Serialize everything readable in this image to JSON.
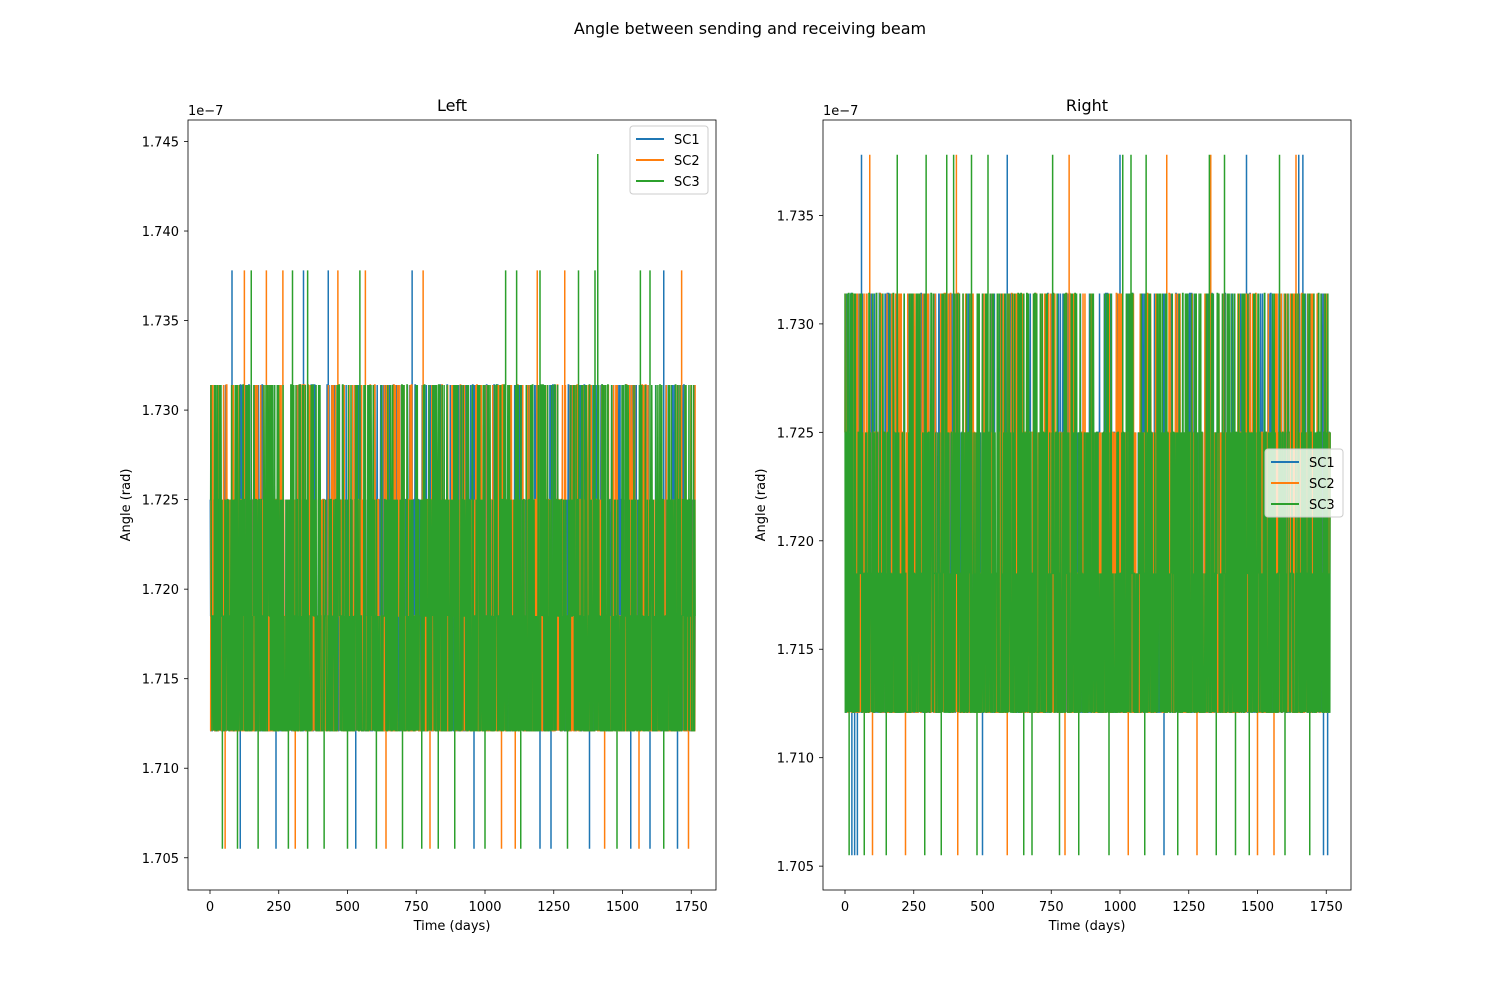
{
  "figure": {
    "suptitle": "Angle between sending and receiving beam"
  },
  "colors": {
    "SC1": "#1f77b4",
    "SC2": "#ff7f0e",
    "SC3": "#2ca02c"
  },
  "chart_data": [
    {
      "type": "line",
      "title": "Left",
      "xlabel": "Time (days)",
      "ylabel": "Angle (rad)",
      "y_offset_label": "1e−7",
      "y_scale_factor": 1e-07,
      "xlim": [
        -80,
        1840
      ],
      "ylim": [
        1.7032,
        1.7462
      ],
      "x_ticks": [
        0,
        250,
        500,
        750,
        1000,
        1250,
        1500,
        1750
      ],
      "y_ticks": [
        "1.705",
        "1.710",
        "1.715",
        "1.720",
        "1.725",
        "1.730",
        "1.735",
        "1.740",
        "1.745"
      ],
      "legend_position": "upper right",
      "x_range": [
        0,
        1764
      ],
      "series": [
        {
          "name": "SC1",
          "levels": [
            1.7121,
            1.7185,
            1.725,
            1.7314
          ],
          "spikes_high": [
            {
              "x": 80,
              "y": 1.7378
            },
            {
              "x": 340,
              "y": 1.7378
            },
            {
              "x": 430,
              "y": 1.7378
            },
            {
              "x": 735,
              "y": 1.7378
            },
            {
              "x": 1650,
              "y": 1.7378
            }
          ],
          "spikes_low": [
            {
              "x": 110,
              "y": 1.7055
            },
            {
              "x": 240,
              "y": 1.7055
            },
            {
              "x": 530,
              "y": 1.7055
            },
            {
              "x": 960,
              "y": 1.7055
            },
            {
              "x": 1200,
              "y": 1.7055
            },
            {
              "x": 1240,
              "y": 1.7055
            },
            {
              "x": 1380,
              "y": 1.7055
            },
            {
              "x": 1530,
              "y": 1.7055
            },
            {
              "x": 1600,
              "y": 1.7055
            },
            {
              "x": 1700,
              "y": 1.7055
            }
          ]
        },
        {
          "name": "SC2",
          "levels": [
            1.7121,
            1.7185,
            1.725,
            1.7314
          ],
          "spikes_high": [
            {
              "x": 125,
              "y": 1.7378
            },
            {
              "x": 205,
              "y": 1.7378
            },
            {
              "x": 265,
              "y": 1.7378
            },
            {
              "x": 465,
              "y": 1.7378
            },
            {
              "x": 565,
              "y": 1.7378
            },
            {
              "x": 775,
              "y": 1.7378
            },
            {
              "x": 1190,
              "y": 1.7378
            },
            {
              "x": 1290,
              "y": 1.7378
            },
            {
              "x": 1715,
              "y": 1.7378
            }
          ],
          "spikes_low": [
            {
              "x": 55,
              "y": 1.7055
            },
            {
              "x": 310,
              "y": 1.7055
            },
            {
              "x": 640,
              "y": 1.7055
            },
            {
              "x": 800,
              "y": 1.7055
            },
            {
              "x": 1060,
              "y": 1.7055
            },
            {
              "x": 1110,
              "y": 1.7055
            },
            {
              "x": 1435,
              "y": 1.7055
            },
            {
              "x": 1560,
              "y": 1.7055
            },
            {
              "x": 1740,
              "y": 1.7055
            }
          ]
        },
        {
          "name": "SC3",
          "levels": [
            1.7121,
            1.7185,
            1.725,
            1.7314
          ],
          "spikes_high": [
            {
              "x": 150,
              "y": 1.7378
            },
            {
              "x": 300,
              "y": 1.7378
            },
            {
              "x": 355,
              "y": 1.7378
            },
            {
              "x": 545,
              "y": 1.7378
            },
            {
              "x": 1075,
              "y": 1.7378
            },
            {
              "x": 1115,
              "y": 1.7378
            },
            {
              "x": 1200,
              "y": 1.7378
            },
            {
              "x": 1340,
              "y": 1.7378
            },
            {
              "x": 1400,
              "y": 1.7378
            },
            {
              "x": 1410,
              "y": 1.7443
            },
            {
              "x": 1565,
              "y": 1.7378
            },
            {
              "x": 1600,
              "y": 1.7378
            }
          ],
          "spikes_low": [
            {
              "x": 45,
              "y": 1.7055
            },
            {
              "x": 100,
              "y": 1.7055
            },
            {
              "x": 175,
              "y": 1.7055
            },
            {
              "x": 285,
              "y": 1.7055
            },
            {
              "x": 355,
              "y": 1.7055
            },
            {
              "x": 415,
              "y": 1.7055
            },
            {
              "x": 500,
              "y": 1.7055
            },
            {
              "x": 605,
              "y": 1.7055
            },
            {
              "x": 700,
              "y": 1.7055
            },
            {
              "x": 770,
              "y": 1.7055
            },
            {
              "x": 830,
              "y": 1.7055
            },
            {
              "x": 890,
              "y": 1.7055
            },
            {
              "x": 1000,
              "y": 1.7055
            },
            {
              "x": 1130,
              "y": 1.7055
            },
            {
              "x": 1300,
              "y": 1.7055
            },
            {
              "x": 1480,
              "y": 1.7055
            },
            {
              "x": 1650,
              "y": 1.7055
            }
          ]
        }
      ]
    },
    {
      "type": "line",
      "title": "Right",
      "xlabel": "Time (days)",
      "ylabel": "Angle (rad)",
      "y_offset_label": "1e−7",
      "y_scale_factor": 1e-07,
      "xlim": [
        -80,
        1840
      ],
      "ylim": [
        1.7039,
        1.7394
      ],
      "x_ticks": [
        0,
        250,
        500,
        750,
        1000,
        1250,
        1500,
        1750
      ],
      "y_ticks": [
        "1.705",
        "1.710",
        "1.715",
        "1.720",
        "1.725",
        "1.730",
        "1.735"
      ],
      "legend_position": "center right",
      "x_range": [
        0,
        1764
      ],
      "series": [
        {
          "name": "SC1",
          "levels": [
            1.7121,
            1.7185,
            1.725,
            1.7314
          ],
          "spikes_high": [
            {
              "x": 60,
              "y": 1.7378
            },
            {
              "x": 590,
              "y": 1.7378
            },
            {
              "x": 1000,
              "y": 1.7378
            },
            {
              "x": 1460,
              "y": 1.7378
            },
            {
              "x": 1650,
              "y": 1.7378
            },
            {
              "x": 1665,
              "y": 1.7378
            }
          ],
          "spikes_low": [
            {
              "x": 25,
              "y": 1.7055
            },
            {
              "x": 35,
              "y": 1.7055
            },
            {
              "x": 45,
              "y": 1.7055
            },
            {
              "x": 500,
              "y": 1.7055
            },
            {
              "x": 1160,
              "y": 1.7055
            },
            {
              "x": 1740,
              "y": 1.7055
            },
            {
              "x": 1755,
              "y": 1.7055
            }
          ]
        },
        {
          "name": "SC2",
          "levels": [
            1.7121,
            1.7185,
            1.725,
            1.7314
          ],
          "spikes_high": [
            {
              "x": 90,
              "y": 1.7378
            },
            {
              "x": 405,
              "y": 1.7378
            },
            {
              "x": 815,
              "y": 1.7378
            },
            {
              "x": 1170,
              "y": 1.7378
            },
            {
              "x": 1330,
              "y": 1.7378
            },
            {
              "x": 1640,
              "y": 1.7378
            }
          ],
          "spikes_low": [
            {
              "x": 100,
              "y": 1.7055
            },
            {
              "x": 220,
              "y": 1.7055
            },
            {
              "x": 410,
              "y": 1.7055
            },
            {
              "x": 590,
              "y": 1.7055
            },
            {
              "x": 800,
              "y": 1.7055
            },
            {
              "x": 1030,
              "y": 1.7055
            },
            {
              "x": 1280,
              "y": 1.7055
            },
            {
              "x": 1500,
              "y": 1.7055
            },
            {
              "x": 1560,
              "y": 1.7055
            }
          ]
        },
        {
          "name": "SC3",
          "levels": [
            1.7121,
            1.7185,
            1.725,
            1.7314
          ],
          "spikes_high": [
            {
              "x": 190,
              "y": 1.7378
            },
            {
              "x": 295,
              "y": 1.7378
            },
            {
              "x": 370,
              "y": 1.7378
            },
            {
              "x": 395,
              "y": 1.7378
            },
            {
              "x": 460,
              "y": 1.7378
            },
            {
              "x": 520,
              "y": 1.7378
            },
            {
              "x": 755,
              "y": 1.7378
            },
            {
              "x": 1010,
              "y": 1.7378
            },
            {
              "x": 1040,
              "y": 1.7378
            },
            {
              "x": 1095,
              "y": 1.7378
            },
            {
              "x": 1325,
              "y": 1.7378
            },
            {
              "x": 1380,
              "y": 1.7378
            },
            {
              "x": 1580,
              "y": 1.7378
            }
          ],
          "spikes_low": [
            {
              "x": 15,
              "y": 1.7055
            },
            {
              "x": 70,
              "y": 1.7055
            },
            {
              "x": 150,
              "y": 1.7055
            },
            {
              "x": 290,
              "y": 1.7055
            },
            {
              "x": 350,
              "y": 1.7055
            },
            {
              "x": 480,
              "y": 1.7055
            },
            {
              "x": 650,
              "y": 1.7055
            },
            {
              "x": 680,
              "y": 1.7055
            },
            {
              "x": 780,
              "y": 1.7055
            },
            {
              "x": 850,
              "y": 1.7055
            },
            {
              "x": 960,
              "y": 1.7055
            },
            {
              "x": 1090,
              "y": 1.7055
            },
            {
              "x": 1210,
              "y": 1.7055
            },
            {
              "x": 1350,
              "y": 1.7055
            },
            {
              "x": 1420,
              "y": 1.7055
            },
            {
              "x": 1470,
              "y": 1.7055
            },
            {
              "x": 1600,
              "y": 1.7055
            },
            {
              "x": 1690,
              "y": 1.7055
            }
          ]
        }
      ]
    }
  ]
}
